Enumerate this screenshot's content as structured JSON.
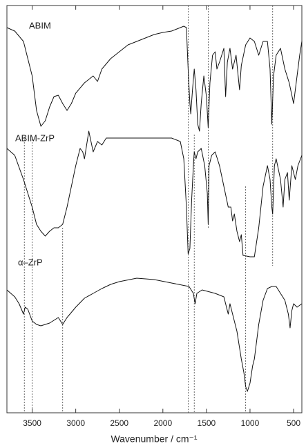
{
  "chart_data": {
    "type": "line",
    "x_label": "Wavenumber / cm⁻¹",
    "xlim": [
      3790,
      405
    ],
    "xticks": [
      3500,
      3000,
      2500,
      2000,
      1500,
      1000,
      500
    ],
    "ylim": [
      0,
      590
    ],
    "markers": [
      3590,
      3500,
      3150,
      1710,
      1640,
      1480,
      1050,
      740
    ],
    "series": [
      {
        "name": "ABIM",
        "color": "#111111",
        "x": [
          3790,
          3700,
          3600,
          3500,
          3450,
          3400,
          3350,
          3300,
          3250,
          3200,
          3150,
          3100,
          3050,
          3000,
          2900,
          2800,
          2750,
          2700,
          2600,
          2500,
          2400,
          2300,
          2200,
          2100,
          2000,
          1900,
          1800,
          1760,
          1730,
          1710,
          1690,
          1680,
          1660,
          1640,
          1620,
          1600,
          1580,
          1560,
          1530,
          1500,
          1480,
          1460,
          1430,
          1400,
          1380,
          1350,
          1300,
          1280,
          1260,
          1230,
          1200,
          1160,
          1120,
          1100,
          1050,
          1000,
          950,
          900,
          850,
          800,
          770,
          750,
          730,
          700,
          650,
          600,
          550,
          500,
          470,
          430,
          405
        ],
        "values": [
          558,
          553,
          538,
          488,
          438,
          415,
          423,
          443,
          458,
          460,
          448,
          438,
          448,
          463,
          478,
          488,
          480,
          498,
          513,
          523,
          533,
          538,
          543,
          548,
          551,
          553,
          558,
          560,
          558,
          498,
          448,
          433,
          468,
          498,
          468,
          418,
          408,
          448,
          488,
          458,
          413,
          478,
          518,
          523,
          498,
          508,
          528,
          458,
          508,
          528,
          498,
          518,
          468,
          503,
          533,
          543,
          538,
          518,
          538,
          538,
          498,
          418,
          488,
          518,
          528,
          498,
          478,
          448,
          478,
          518,
          538
        ]
      },
      {
        "name": "ABIM-ZrP",
        "color": "#111111",
        "x": [
          3790,
          3700,
          3600,
          3500,
          3450,
          3400,
          3350,
          3300,
          3250,
          3200,
          3150,
          3100,
          3050,
          3000,
          2950,
          2920,
          2900,
          2850,
          2800,
          2750,
          2700,
          2650,
          2600,
          2500,
          2300,
          2100,
          1900,
          1800,
          1760,
          1730,
          1710,
          1690,
          1670,
          1650,
          1640,
          1620,
          1600,
          1560,
          1520,
          1490,
          1480,
          1470,
          1440,
          1400,
          1350,
          1300,
          1250,
          1220,
          1200,
          1180,
          1150,
          1120,
          1100,
          1080,
          1000,
          950,
          900,
          850,
          800,
          770,
          750,
          740,
          720,
          700,
          650,
          620,
          600,
          570,
          550,
          520,
          480,
          450,
          405
        ],
        "values": [
          383,
          373,
          338,
          298,
          273,
          263,
          256,
          263,
          268,
          268,
          273,
          298,
          328,
          358,
          383,
          378,
          368,
          408,
          378,
          393,
          388,
          398,
          398,
          398,
          398,
          398,
          398,
          393,
          368,
          298,
          230,
          238,
          308,
          358,
          378,
          368,
          378,
          383,
          358,
          318,
          273,
          358,
          373,
          378,
          358,
          328,
          298,
          298,
          278,
          288,
          263,
          248,
          258,
          228,
          226,
          226,
          268,
          328,
          358,
          338,
          298,
          288,
          358,
          368,
          338,
          298,
          338,
          348,
          308,
          358,
          338,
          358,
          373
        ]
      },
      {
        "name": "α–ZrP",
        "color": "#111111",
        "x": [
          3790,
          3700,
          3650,
          3600,
          3580,
          3550,
          3500,
          3450,
          3400,
          3300,
          3200,
          3150,
          3100,
          3000,
          2900,
          2800,
          2700,
          2600,
          2500,
          2300,
          2100,
          1900,
          1700,
          1650,
          1630,
          1610,
          1550,
          1400,
          1300,
          1250,
          1230,
          1200,
          1150,
          1100,
          1070,
          1050,
          1030,
          1000,
          970,
          950,
          930,
          900,
          850,
          800,
          750,
          700,
          650,
          600,
          560,
          540,
          520,
          500,
          460,
          405
        ],
        "values": [
          178,
          168,
          158,
          143,
          153,
          150,
          133,
          128,
          126,
          130,
          138,
          128,
          138,
          153,
          166,
          173,
          180,
          186,
          190,
          195,
          193,
          188,
          183,
          173,
          158,
          173,
          178,
          173,
          168,
          143,
          158,
          143,
          118,
          78,
          58,
          38,
          31,
          43,
          68,
          78,
          98,
          128,
          163,
          180,
          183,
          183,
          173,
          163,
          143,
          123,
          148,
          158,
          153,
          158
        ]
      }
    ]
  }
}
